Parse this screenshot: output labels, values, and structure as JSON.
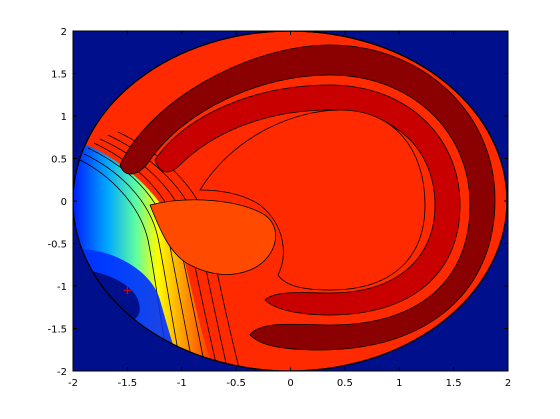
{
  "chart_data": {
    "type": "heatmap",
    "title": "",
    "xlabel": "",
    "ylabel": "",
    "xlim": [
      -2,
      2
    ],
    "ylim": [
      -2,
      2
    ],
    "x_ticks": [
      -2,
      -1.5,
      -1,
      -0.5,
      0,
      0.5,
      1,
      1.5,
      2
    ],
    "y_ticks": [
      2,
      1.5,
      1,
      0.5,
      0,
      -0.5,
      -1,
      -1.5,
      -2
    ],
    "x_tick_labels": [
      "-2",
      "-1.5",
      "-1",
      "-0.5",
      "0",
      "0.5",
      "1",
      "1.5",
      "2"
    ],
    "y_tick_labels": [
      "2",
      "1.5",
      "1",
      "0.5",
      "0",
      "-0.5",
      "-1",
      "-1.5",
      "-2"
    ],
    "colormap": "jet",
    "background_color": "#00108c",
    "contour_line_color": "#000000",
    "marker": {
      "symbol": "+",
      "x": -1.5,
      "y": -1.05,
      "color": "#e00000"
    }
  }
}
